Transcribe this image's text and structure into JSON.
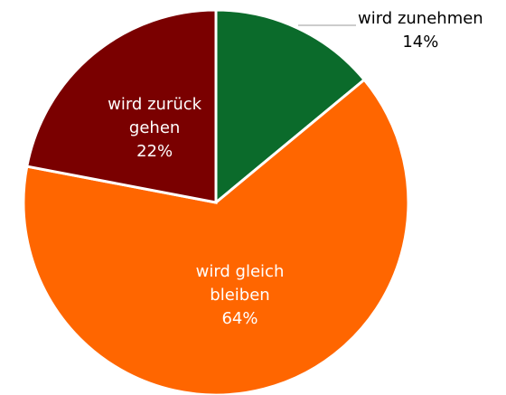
{
  "chart_data": {
    "type": "pie",
    "categories": [
      "wird zunehmen",
      "wird gleich bleiben",
      "wird zurück gehen"
    ],
    "values": [
      14,
      64,
      22
    ],
    "value_labels": [
      "14%",
      "64%",
      "22%"
    ],
    "colors": [
      "#0b6b2b",
      "#ff6600",
      "#7a0000"
    ]
  }
}
